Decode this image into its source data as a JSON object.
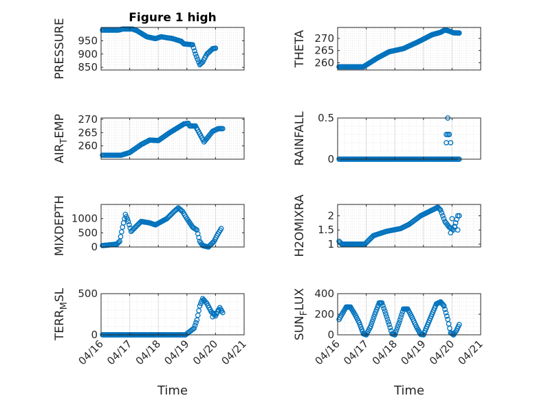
{
  "figure": {
    "title": "Figure 1 high"
  },
  "chart_data": [
    {
      "type": "scatter",
      "ylabel": "PRESSURE",
      "title": "Figure 1 high",
      "xlim": [
        0,
        5
      ],
      "ylim": [
        840,
        1000
      ],
      "yticks": [
        850,
        900,
        950
      ],
      "xticks": [
        0,
        1,
        2,
        3,
        4,
        5
      ],
      "xticklabels": [
        "04/16",
        "04/17",
        "04/18",
        "04/19",
        "04/20",
        "04/21"
      ],
      "grid": true,
      "series": [
        {
          "keyframes": [
            [
              0.05,
              990
            ],
            [
              0.6,
              990
            ],
            [
              0.75,
              994
            ],
            [
              1.1,
              994
            ],
            [
              1.25,
              988
            ],
            [
              1.6,
              965
            ],
            [
              1.9,
              958
            ],
            [
              2.1,
              965
            ],
            [
              2.5,
              958
            ],
            [
              2.8,
              948
            ],
            [
              2.9,
              938
            ],
            [
              3.2,
              935
            ],
            [
              3.3,
              900
            ],
            [
              3.45,
              860
            ],
            [
              3.55,
              870
            ],
            [
              3.7,
              900
            ],
            [
              3.9,
              920
            ],
            [
              4.0,
              922
            ]
          ],
          "step": 0.035
        }
      ]
    },
    {
      "type": "scatter",
      "ylabel": "THETA",
      "xlim": [
        0,
        5
      ],
      "ylim": [
        257,
        274.5
      ],
      "yticks": [
        260,
        265,
        270
      ],
      "xticks": [
        0,
        1,
        2,
        3,
        4,
        5
      ],
      "xticklabels": [
        "04/16",
        "04/17",
        "04/18",
        "04/19",
        "04/20",
        "04/21"
      ],
      "grid": true,
      "series": [
        {
          "keyframes": [
            [
              0.05,
              258.3
            ],
            [
              0.9,
              258.3
            ],
            [
              1.4,
              262
            ],
            [
              1.8,
              264.5
            ],
            [
              2.3,
              265.8
            ],
            [
              2.8,
              268.5
            ],
            [
              3.3,
              271.5
            ],
            [
              3.6,
              272.5
            ],
            [
              3.75,
              273.5
            ],
            [
              3.9,
              273
            ],
            [
              4.05,
              272.3
            ],
            [
              4.25,
              272.2
            ]
          ],
          "step": 0.03
        }
      ]
    },
    {
      "type": "scatter",
      "ylabel": "AIR_TEMP",
      "xlim": [
        0,
        5
      ],
      "ylim": [
        255,
        270.5
      ],
      "yticks": [
        260,
        265,
        270
      ],
      "xticks": [
        0,
        1,
        2,
        3,
        4,
        5
      ],
      "xticklabels": [
        "04/16",
        "04/17",
        "04/18",
        "04/19",
        "04/20",
        "04/21"
      ],
      "grid": true,
      "series": [
        {
          "keyframes": [
            [
              0.05,
              256.5
            ],
            [
              0.7,
              256.5
            ],
            [
              1.0,
              257.5
            ],
            [
              1.4,
              260.5
            ],
            [
              1.7,
              262.2
            ],
            [
              2.0,
              262
            ],
            [
              2.4,
              265
            ],
            [
              2.9,
              268.3
            ],
            [
              3.05,
              268.5
            ],
            [
              3.1,
              267.5
            ],
            [
              3.3,
              267.5
            ],
            [
              3.45,
              264.5
            ],
            [
              3.6,
              261.5
            ],
            [
              3.75,
              263.5
            ],
            [
              3.9,
              265.5
            ],
            [
              4.1,
              266.5
            ],
            [
              4.25,
              266.5
            ]
          ],
          "step": 0.035
        }
      ]
    },
    {
      "type": "scatter",
      "ylabel": "RAINFALL",
      "xlim": [
        0,
        5
      ],
      "ylim": [
        0,
        0.5
      ],
      "yticks": [
        0,
        0.5
      ],
      "xticks": [
        0,
        1,
        2,
        3,
        4,
        5
      ],
      "xticklabels": [
        "04/16",
        "04/17",
        "04/18",
        "04/19",
        "04/20",
        "04/21"
      ],
      "grid": true,
      "series": [
        {
          "keyframes": [
            [
              0.05,
              0
            ],
            [
              4.25,
              0
            ]
          ],
          "step": 0.04,
          "extra": [
            [
              3.85,
              0.5
            ],
            [
              3.8,
              0.3
            ],
            [
              3.85,
              0.3
            ],
            [
              3.9,
              0.3
            ],
            [
              3.8,
              0.2
            ],
            [
              3.95,
              0.2
            ],
            [
              3.9,
              0.3
            ]
          ]
        }
      ]
    },
    {
      "type": "scatter",
      "ylabel": "MIXDEPTH",
      "xlim": [
        0,
        5
      ],
      "ylim": [
        0,
        1500
      ],
      "yticks": [
        0,
        500,
        1000
      ],
      "xticks": [
        0,
        1,
        2,
        3,
        4,
        5
      ],
      "xticklabels": [
        "04/16",
        "04/17",
        "04/18",
        "04/19",
        "04/20",
        "04/21"
      ],
      "grid": true,
      "series": [
        {
          "keyframes": [
            [
              0.05,
              50
            ],
            [
              0.55,
              100
            ],
            [
              0.65,
              200
            ],
            [
              0.75,
              700
            ],
            [
              0.85,
              1150
            ],
            [
              0.95,
              900
            ],
            [
              1.05,
              550
            ],
            [
              1.2,
              700
            ],
            [
              1.4,
              900
            ],
            [
              1.7,
              850
            ],
            [
              1.9,
              780
            ],
            [
              2.3,
              1000
            ],
            [
              2.55,
              1250
            ],
            [
              2.7,
              1380
            ],
            [
              2.85,
              1250
            ],
            [
              3.0,
              1000
            ],
            [
              3.2,
              700
            ],
            [
              3.35,
              600
            ],
            [
              3.45,
              200
            ],
            [
              3.55,
              50
            ],
            [
              3.75,
              0
            ],
            [
              3.95,
              200
            ],
            [
              4.05,
              400
            ],
            [
              4.2,
              650
            ]
          ],
          "step": 0.035
        }
      ]
    },
    {
      "type": "scatter",
      "ylabel": "H2OMIXRA",
      "xlim": [
        0,
        5
      ],
      "ylim": [
        0.9,
        2.4
      ],
      "yticks": [
        1,
        1.5,
        2
      ],
      "xticks": [
        0,
        1,
        2,
        3,
        4,
        5
      ],
      "xticklabels": [
        "04/16",
        "04/17",
        "04/18",
        "04/19",
        "04/20",
        "04/21"
      ],
      "grid": true,
      "series": [
        {
          "keyframes": [
            [
              0.05,
              1.1
            ],
            [
              0.15,
              1.0
            ],
            [
              0.95,
              1.0
            ],
            [
              1.25,
              1.3
            ],
            [
              1.7,
              1.45
            ],
            [
              2.2,
              1.55
            ],
            [
              2.5,
              1.7
            ],
            [
              2.9,
              2.0
            ],
            [
              3.3,
              2.2
            ],
            [
              3.5,
              2.3
            ],
            [
              3.6,
              2.2
            ],
            [
              3.75,
              1.8
            ],
            [
              3.9,
              1.6
            ],
            [
              4.05,
              1.5
            ],
            [
              4.2,
              2.0
            ]
          ],
          "step": 0.035,
          "extra": [
            [
              4.0,
              1.9
            ],
            [
              4.1,
              1.6
            ],
            [
              4.2,
              1.5
            ],
            [
              3.95,
              1.4
            ],
            [
              4.25,
              2.0
            ]
          ]
        }
      ]
    },
    {
      "type": "scatter",
      "ylabel": "TERR_MSL",
      "xlim": [
        0,
        5
      ],
      "ylim": [
        0,
        500
      ],
      "yticks": [
        0,
        500
      ],
      "xticks": [
        0,
        1,
        2,
        3,
        4,
        5
      ],
      "xticklabels": [
        "04/16",
        "04/17",
        "04/18",
        "04/19",
        "04/20",
        "04/21"
      ],
      "grid": true,
      "series": [
        {
          "keyframes": [
            [
              0.05,
              0
            ],
            [
              2.95,
              0
            ],
            [
              3.1,
              40
            ],
            [
              3.25,
              80
            ],
            [
              3.35,
              180
            ],
            [
              3.45,
              350
            ],
            [
              3.55,
              440
            ],
            [
              3.7,
              380
            ],
            [
              3.85,
              280
            ],
            [
              4.0,
              230
            ],
            [
              4.15,
              330
            ],
            [
              4.25,
              270
            ]
          ],
          "step": 0.035,
          "extra": [
            [
              3.9,
              220
            ],
            [
              4.1,
              300
            ],
            [
              4.2,
              290
            ],
            [
              3.6,
              420
            ],
            [
              3.95,
              260
            ]
          ]
        }
      ]
    },
    {
      "type": "scatter",
      "ylabel": "SUN_FLUX",
      "xlim": [
        0,
        5
      ],
      "ylim": [
        0,
        400
      ],
      "yticks": [
        0,
        200,
        400
      ],
      "xticks": [
        0,
        1,
        2,
        3,
        4,
        5
      ],
      "xticklabels": [
        "04/16",
        "04/17",
        "04/18",
        "04/19",
        "04/20",
        "04/21"
      ],
      "grid": true,
      "series": [
        {
          "keyframes": [
            [
              0.05,
              150
            ],
            [
              0.15,
              200
            ],
            [
              0.3,
              270
            ],
            [
              0.45,
              270
            ],
            [
              0.6,
              200
            ],
            [
              0.75,
              120
            ],
            [
              0.9,
              10
            ],
            [
              1.0,
              0
            ],
            [
              1.15,
              80
            ],
            [
              1.3,
              200
            ],
            [
              1.45,
              310
            ],
            [
              1.55,
              310
            ],
            [
              1.65,
              230
            ],
            [
              1.8,
              100
            ],
            [
              1.9,
              10
            ],
            [
              2.0,
              0
            ],
            [
              2.15,
              120
            ],
            [
              2.3,
              250
            ],
            [
              2.45,
              250
            ],
            [
              2.6,
              170
            ],
            [
              2.75,
              80
            ],
            [
              2.9,
              5
            ],
            [
              3.0,
              0
            ],
            [
              3.15,
              100
            ],
            [
              3.3,
              200
            ],
            [
              3.45,
              300
            ],
            [
              3.6,
              320
            ],
            [
              3.72,
              280
            ],
            [
              3.85,
              150
            ],
            [
              3.95,
              20
            ],
            [
              4.05,
              0
            ],
            [
              4.15,
              40
            ],
            [
              4.25,
              100
            ]
          ],
          "step": 0.03
        }
      ]
    }
  ],
  "axes_text": {
    "xlabel_left": "Time",
    "xlabel_right": "Time"
  }
}
